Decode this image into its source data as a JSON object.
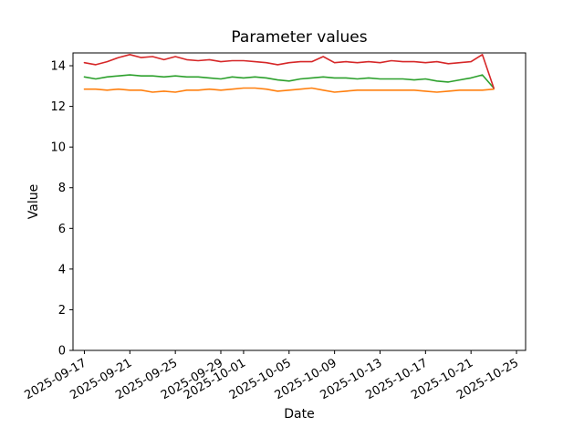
{
  "figure": {
    "background": "#ffffff"
  },
  "chart_data": {
    "type": "line",
    "title": "Parameter values",
    "xlabel": "Date",
    "ylabel": "Value",
    "grid": false,
    "legend": "none",
    "axis_color": "#000000",
    "tick_label_color": "#000000",
    "xtick_rotation": 30,
    "ylim": [
      0,
      14.63
    ],
    "xlim_days": [
      -1.0,
      38.8
    ],
    "yticks": [
      0,
      2,
      4,
      6,
      8,
      10,
      12,
      14
    ],
    "xticks": [
      "2025-09-17",
      "2025-09-21",
      "2025-09-25",
      "2025-09-29",
      "2025-10-01",
      "2025-10-05",
      "2025-10-09",
      "2025-10-13",
      "2025-10-17",
      "2025-10-21",
      "2025-10-25"
    ],
    "x": [
      "2025-09-17",
      "2025-09-18",
      "2025-09-19",
      "2025-09-20",
      "2025-09-21",
      "2025-09-22",
      "2025-09-23",
      "2025-09-24",
      "2025-09-25",
      "2025-09-26",
      "2025-09-27",
      "2025-09-28",
      "2025-09-29",
      "2025-09-30",
      "2025-10-01",
      "2025-10-02",
      "2025-10-03",
      "2025-10-04",
      "2025-10-05",
      "2025-10-06",
      "2025-10-07",
      "2025-10-08",
      "2025-10-09",
      "2025-10-10",
      "2025-10-11",
      "2025-10-12",
      "2025-10-13",
      "2025-10-14",
      "2025-10-15",
      "2025-10-16",
      "2025-10-17",
      "2025-10-18",
      "2025-10-19",
      "2025-10-20",
      "2025-10-21",
      "2025-10-22",
      "2025-10-23"
    ],
    "series": [
      {
        "name": "orange",
        "color": "#ff7f0e",
        "values": [
          12.85,
          12.85,
          12.8,
          12.85,
          12.8,
          12.8,
          12.7,
          12.75,
          12.7,
          12.8,
          12.8,
          12.85,
          12.8,
          12.85,
          12.9,
          12.9,
          12.85,
          12.75,
          12.8,
          12.85,
          12.9,
          12.8,
          12.7,
          12.75,
          12.8,
          12.8,
          12.8,
          12.8,
          12.8,
          12.8,
          12.75,
          12.7,
          12.75,
          12.8,
          12.8,
          12.8,
          12.85
        ]
      },
      {
        "name": "green",
        "color": "#2ca02c",
        "values": [
          13.45,
          13.35,
          13.45,
          13.5,
          13.55,
          13.5,
          13.5,
          13.45,
          13.5,
          13.45,
          13.45,
          13.4,
          13.35,
          13.45,
          13.4,
          13.45,
          13.4,
          13.3,
          13.25,
          13.35,
          13.4,
          13.45,
          13.4,
          13.4,
          13.35,
          13.4,
          13.35,
          13.35,
          13.35,
          13.3,
          13.35,
          13.25,
          13.2,
          13.3,
          13.4,
          13.55,
          12.9
        ]
      },
      {
        "name": "red",
        "color": "#d62728",
        "values": [
          14.15,
          14.05,
          14.2,
          14.4,
          14.55,
          14.4,
          14.45,
          14.3,
          14.45,
          14.3,
          14.25,
          14.3,
          14.2,
          14.25,
          14.25,
          14.2,
          14.15,
          14.05,
          14.15,
          14.2,
          14.2,
          14.45,
          14.15,
          14.2,
          14.15,
          14.2,
          14.15,
          14.25,
          14.2,
          14.2,
          14.15,
          14.2,
          14.1,
          14.15,
          14.2,
          14.55,
          12.9
        ]
      }
    ]
  }
}
